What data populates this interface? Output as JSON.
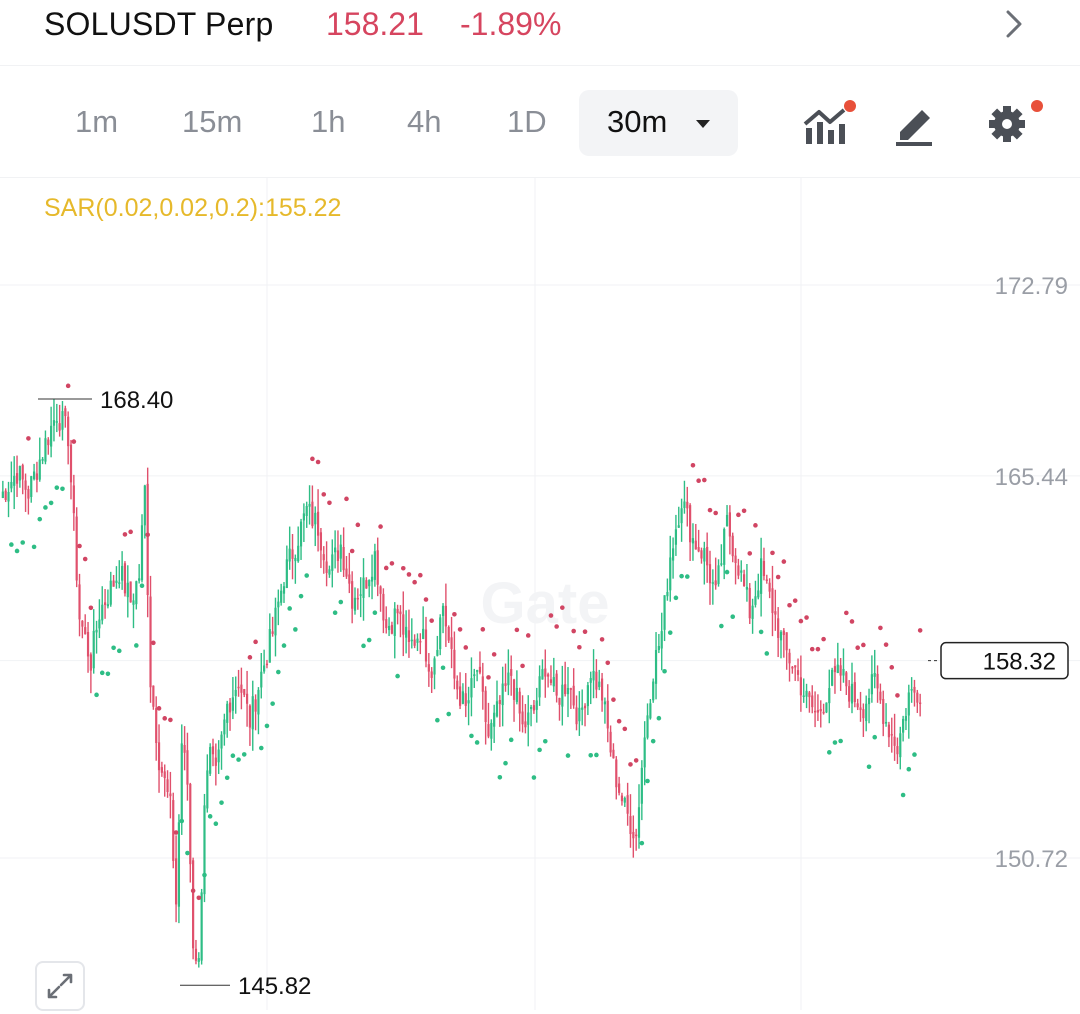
{
  "header": {
    "pair": "SOLUSDT Perp",
    "price": "158.21",
    "change": "-1.89%",
    "down_color": "#d6455f",
    "chevron_icon": "chevron-right-icon"
  },
  "toolbar": {
    "timeframes": [
      "1m",
      "15m",
      "1h",
      "4h",
      "1D"
    ],
    "active_timeframe": "30m",
    "tools": [
      "indicators-icon",
      "draw-pencil-icon",
      "settings-gear-icon"
    ]
  },
  "indicator": {
    "label": "SAR(0.02,0.02,0.2):155.22"
  },
  "chart_data": {
    "type": "candlestick",
    "y_axis_labels": [
      "172.79",
      "165.44",
      "158.32",
      "150.72"
    ],
    "y_axis_values": [
      172.79,
      165.44,
      158.32,
      150.72
    ],
    "current_price_label": "158.32",
    "high_label": "168.40",
    "low_label": "145.82",
    "up_color": "#2ebd85",
    "down_color": "#e0506c",
    "sar_up_color": "#2ebd85",
    "sar_down_color": "#d14563",
    "close_path": [
      [
        0,
        164.6
      ],
      [
        6,
        165.6
      ],
      [
        10,
        164.8
      ],
      [
        16,
        166.7
      ],
      [
        20,
        167.9
      ],
      [
        24,
        167.0
      ],
      [
        28,
        160.0
      ],
      [
        32,
        158.3
      ],
      [
        35,
        160.2
      ],
      [
        39,
        161.1
      ],
      [
        42,
        161.8
      ],
      [
        46,
        160.6
      ],
      [
        49,
        161.6
      ],
      [
        51,
        164.9
      ],
      [
        53,
        157.6
      ],
      [
        56,
        154.6
      ],
      [
        60,
        152.6
      ],
      [
        62,
        149.0
      ],
      [
        64,
        155.2
      ],
      [
        66,
        153.6
      ],
      [
        68,
        147.5
      ],
      [
        70,
        146.6
      ],
      [
        72,
        153.0
      ],
      [
        74,
        154.6
      ],
      [
        76,
        153.8
      ],
      [
        80,
        156.6
      ],
      [
        84,
        157.6
      ],
      [
        88,
        156.0
      ],
      [
        92,
        157.8
      ],
      [
        96,
        159.4
      ],
      [
        100,
        161.6
      ],
      [
        104,
        162.8
      ],
      [
        108,
        164.1
      ],
      [
        112,
        163.5
      ],
      [
        116,
        161.8
      ],
      [
        120,
        162.8
      ],
      [
        124,
        160.8
      ],
      [
        128,
        161.2
      ],
      [
        132,
        162.4
      ],
      [
        136,
        159.6
      ],
      [
        140,
        160.2
      ],
      [
        144,
        158.8
      ],
      [
        148,
        159.5
      ],
      [
        152,
        158.0
      ],
      [
        156,
        160.5
      ],
      [
        160,
        157.6
      ],
      [
        164,
        156.4
      ],
      [
        168,
        158.0
      ],
      [
        172,
        155.4
      ],
      [
        176,
        156.6
      ],
      [
        180,
        157.8
      ],
      [
        184,
        155.7
      ],
      [
        188,
        156.4
      ],
      [
        192,
        158.2
      ],
      [
        196,
        156.8
      ],
      [
        200,
        157.6
      ],
      [
        204,
        156.0
      ],
      [
        208,
        158.0
      ],
      [
        212,
        157.0
      ],
      [
        216,
        154.2
      ],
      [
        220,
        152.6
      ],
      [
        224,
        151.6
      ],
      [
        226,
        154.3
      ],
      [
        228,
        156.4
      ],
      [
        230,
        158.0
      ],
      [
        233,
        159.4
      ],
      [
        236,
        162.4
      ],
      [
        240,
        164.6
      ],
      [
        244,
        163.0
      ],
      [
        248,
        162.4
      ],
      [
        252,
        160.8
      ],
      [
        256,
        163.6
      ],
      [
        260,
        162.0
      ],
      [
        264,
        160.2
      ],
      [
        268,
        161.8
      ],
      [
        272,
        160.4
      ],
      [
        276,
        158.8
      ],
      [
        280,
        158.0
      ],
      [
        284,
        156.8
      ],
      [
        288,
        156.2
      ],
      [
        292,
        157.4
      ],
      [
        296,
        157.8
      ],
      [
        300,
        157.0
      ],
      [
        304,
        156.6
      ],
      [
        308,
        157.5
      ],
      [
        312,
        156.0
      ],
      [
        316,
        155.0
      ],
      [
        320,
        157.0
      ],
      [
        324,
        157.2
      ]
    ],
    "high": 168.4,
    "low": 145.82,
    "current": 158.32
  }
}
